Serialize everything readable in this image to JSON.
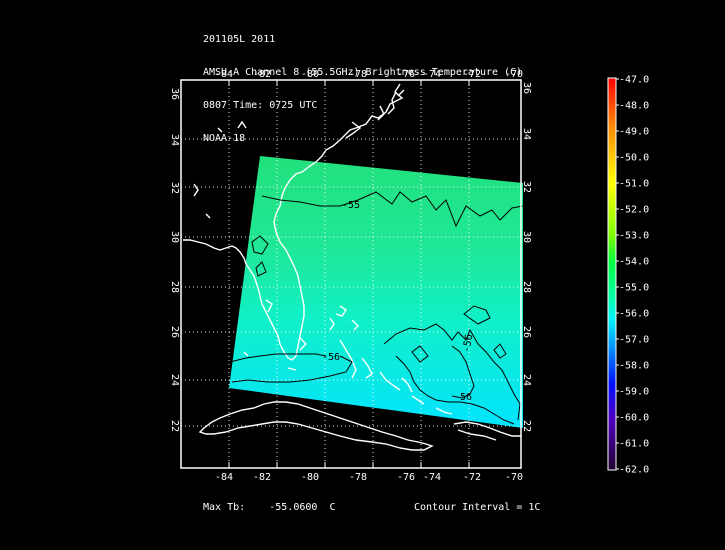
{
  "header": {
    "line1": "201105L 2011",
    "line2": "AMSU-A Channel 8 (55.5GHz) Brightness Temperature (C)",
    "line3": "0807 Time: 0725 UTC",
    "line4": "NOAA-18"
  },
  "axes": {
    "lon_ticks": [
      "-84",
      "-82",
      "-80",
      "-78",
      "-76",
      "-74",
      "-72",
      "-70"
    ],
    "lat_ticks": [
      "36",
      "34",
      "32",
      "30",
      "28",
      "26",
      "24",
      "22"
    ]
  },
  "contour_labels": [
    "-55",
    "-56",
    "-56",
    "-56"
  ],
  "colorbar": {
    "labels": [
      "-47.0",
      "-48.0",
      "-49.0",
      "-50.0",
      "-51.0",
      "-52.0",
      "-53.0",
      "-54.0",
      "-55.0",
      "-56.0",
      "-57.0",
      "-58.0",
      "-59.0",
      "-60.0",
      "-61.0",
      "-62.0"
    ],
    "colors": [
      "#ff0000",
      "#ff4000",
      "#ff8000",
      "#ffbf00",
      "#ffff00",
      "#aaff00",
      "#55ff00",
      "#00ff40",
      "#00ff90",
      "#00ffcc",
      "#00e0ff",
      "#0080ff",
      "#0020ff",
      "#4000d0",
      "#6000a0",
      "#300050"
    ]
  },
  "footer": {
    "max_tb_label": "Max Tb:",
    "max_tb_value": "-55.0600",
    "max_tb_unit": "C",
    "contour_interval": "Contour Interval = 1C"
  }
}
